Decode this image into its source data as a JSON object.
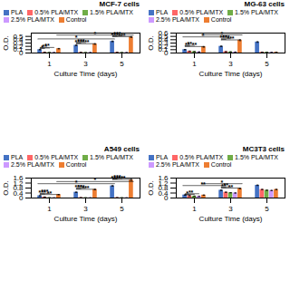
{
  "chart_data": [
    {
      "type": "bar",
      "title": "MCF-7 cells",
      "xlabel": "Culture Time (days)",
      "ylabel": "O.D.",
      "categories": [
        "1",
        "3",
        "5"
      ],
      "ylim": [
        0,
        0.6
      ],
      "yticks": [
        0,
        0.1,
        0.2,
        0.3,
        0.4,
        0.5
      ],
      "grid": false,
      "legend": "upper left",
      "series": [
        {
          "name": "PLA",
          "color": "#4472C4",
          "values": [
            0.1,
            0.23,
            0.35
          ],
          "errors": [
            0.006,
            0.009,
            0.01
          ]
        },
        {
          "name": "0.5% PLA/MTX",
          "color": "#FF6666",
          "values": [
            0.02,
            0.018,
            0.018
          ],
          "errors": [
            0.002,
            0.002,
            0.002
          ]
        },
        {
          "name": "1.5% PLA/MTX",
          "color": "#70AD47",
          "values": [
            0.014,
            0.012,
            0.012
          ],
          "errors": [
            0.001,
            0.001,
            0.001
          ]
        },
        {
          "name": "2.5% PLA/MTX",
          "color": "#CC99FF",
          "values": [
            0.012,
            0.012,
            0.012
          ],
          "errors": [
            0.001,
            0.001,
            0.001
          ]
        },
        {
          "name": "Control",
          "color": "#ED7D31",
          "values": [
            0.13,
            0.27,
            0.48
          ],
          "errors": [
            0.008,
            0.01,
            0.014
          ]
        }
      ],
      "annotations": [
        {
          "text": "*",
          "y": 0.135,
          "from": {
            "category": "1",
            "series": "PLA"
          },
          "to": {
            "category": "1",
            "series": "0.5% PLA/MTX"
          }
        },
        {
          "text": "**",
          "y": 0.1512,
          "from": {
            "category": "1",
            "series": "PLA"
          },
          "to": {
            "category": "1",
            "series": "1.5% PLA/MTX"
          }
        },
        {
          "text": "**",
          "y": 0.1674,
          "from": {
            "category": "1",
            "series": "PLA"
          },
          "to": {
            "category": "1",
            "series": "2.5% PLA/MTX"
          }
        },
        {
          "text": "***",
          "y": 0.28,
          "from": {
            "category": "3",
            "series": "PLA"
          },
          "to": {
            "category": "3",
            "series": "Control"
          }
        },
        {
          "text": "***",
          "y": 0.29728,
          "from": {
            "category": "3",
            "series": "PLA"
          },
          "to": {
            "category": "3",
            "series": "0.5% PLA/MTX"
          }
        },
        {
          "text": "***",
          "y": 0.31456,
          "from": {
            "category": "3",
            "series": "PLA"
          },
          "to": {
            "category": "3",
            "series": "1.5% PLA/MTX"
          }
        },
        {
          "text": "***",
          "y": 0.49,
          "from": {
            "category": "5",
            "series": "PLA"
          },
          "to": {
            "category": "5",
            "series": "Control"
          }
        },
        {
          "text": "***",
          "y": 0.50728,
          "from": {
            "category": "5",
            "series": "PLA"
          },
          "to": {
            "category": "5",
            "series": "0.5% PLA/MTX"
          }
        },
        {
          "text": "***",
          "y": 0.52456,
          "from": {
            "category": "5",
            "series": "PLA"
          },
          "to": {
            "category": "5",
            "series": "1.5% PLA/MTX"
          }
        },
        {
          "text": "*",
          "y": 0.425,
          "from": {
            "category": "1",
            "series": "PLA"
          },
          "to": {
            "category": "5",
            "series": "PLA"
          }
        },
        {
          "text": "*",
          "y": 0.54,
          "from": {
            "category": "1",
            "series": "Control"
          },
          "to": {
            "category": "5",
            "series": "Control"
          }
        }
      ]
    },
    {
      "type": "bar",
      "title": "MG-63 cells",
      "xlabel": "Culture Time (days)",
      "ylabel": "O.D.",
      "categories": [
        "1",
        "3",
        "5"
      ],
      "ylim": [
        0,
        0.6
      ],
      "yticks": [
        0,
        0.1,
        0.2,
        0.3,
        0.4,
        0.5,
        0.6
      ],
      "grid": false,
      "legend": "upper left",
      "series": [
        {
          "name": "PLA",
          "color": "#4472C4",
          "values": [
            0.1,
            0.2,
            0.33
          ],
          "errors": [
            0.007,
            0.009,
            0.01
          ]
        },
        {
          "name": "0.5% PLA/MTX",
          "color": "#FF6666",
          "values": [
            0.055,
            0.04,
            0.025
          ],
          "errors": [
            0.003,
            0.003,
            0.002
          ]
        },
        {
          "name": "1.5% PLA/MTX",
          "color": "#70AD47",
          "values": [
            0.042,
            0.033,
            0.02
          ],
          "errors": [
            0.002,
            0.002,
            0.001
          ]
        },
        {
          "name": "2.5% PLA/MTX",
          "color": "#CC99FF",
          "values": [
            0.032,
            0.028,
            0.018
          ],
          "errors": [
            0.002,
            0.002,
            0.001
          ]
        },
        {
          "name": "Control",
          "color": "#ED7D31",
          "values": [
            0.185,
            0.385,
            0.02
          ],
          "errors": [
            0.01,
            0.015,
            0.003
          ]
        }
      ],
      "annotations": [
        {
          "text": "**",
          "y": 0.195,
          "from": {
            "category": "1",
            "series": "PLA"
          },
          "to": {
            "category": "1",
            "series": "Control"
          }
        },
        {
          "text": "**",
          "y": 0.21228,
          "from": {
            "category": "1",
            "series": "PLA"
          },
          "to": {
            "category": "1",
            "series": "0.5% PLA/MTX"
          }
        },
        {
          "text": "**",
          "y": 0.22956,
          "from": {
            "category": "1",
            "series": "PLA"
          },
          "to": {
            "category": "1",
            "series": "1.5% PLA/MTX"
          }
        },
        {
          "text": "***",
          "y": 0.395,
          "from": {
            "category": "3",
            "series": "PLA"
          },
          "to": {
            "category": "3",
            "series": "Control"
          }
        },
        {
          "text": "***",
          "y": 0.41228,
          "from": {
            "category": "3",
            "series": "PLA"
          },
          "to": {
            "category": "3",
            "series": "0.5% PLA/MTX"
          }
        },
        {
          "text": "***",
          "y": 0.42956,
          "from": {
            "category": "3",
            "series": "PLA"
          },
          "to": {
            "category": "3",
            "series": "1.5% PLA/MTX"
          }
        },
        {
          "text": "*",
          "y": 0.485,
          "from": {
            "category": "1",
            "series": "PLA"
          },
          "to": {
            "category": "3",
            "series": "PLA"
          }
        },
        {
          "text": "*",
          "y": 0.545,
          "from": {
            "category": "1",
            "series": "Control"
          },
          "to": {
            "category": "3",
            "series": "Control"
          }
        }
      ]
    },
    {
      "type": "bar",
      "title": "A549 cells",
      "xlabel": "Culture Time (days)",
      "ylabel": "O.D.",
      "categories": [
        "1",
        "3",
        "5"
      ],
      "ylim": [
        0,
        1.6
      ],
      "yticks": [
        0,
        0.4,
        0.8,
        1.2,
        1.6
      ],
      "grid": false,
      "legend": "upper left",
      "series": [
        {
          "name": "PLA",
          "color": "#4472C4",
          "values": [
            0.175,
            0.46,
            0.97
          ],
          "errors": [
            0.01,
            0.015,
            0.02
          ]
        },
        {
          "name": "0.5% PLA/MTX",
          "color": "#FF6666",
          "values": [
            0.075,
            0.03,
            0.028
          ],
          "errors": [
            0.005,
            0.003,
            0.003
          ]
        },
        {
          "name": "1.5% PLA/MTX",
          "color": "#70AD47",
          "values": [
            0.02,
            0.018,
            0.018
          ],
          "errors": [
            0.002,
            0.002,
            0.002
          ]
        },
        {
          "name": "2.5% PLA/MTX",
          "color": "#CC99FF",
          "values": [
            0.015,
            0.015,
            0.015
          ],
          "errors": [
            0.001,
            0.001,
            0.001
          ]
        },
        {
          "name": "Control",
          "color": "#ED7D31",
          "values": [
            0.27,
            0.68,
            1.45
          ],
          "errors": [
            0.015,
            0.025,
            0.04
          ]
        }
      ],
      "annotations": [
        {
          "text": "**",
          "y": 0.28,
          "from": {
            "category": "1",
            "series": "PLA"
          },
          "to": {
            "category": "1",
            "series": "Control"
          }
        },
        {
          "text": "***",
          "y": 0.32608,
          "from": {
            "category": "1",
            "series": "PLA"
          },
          "to": {
            "category": "1",
            "series": "0.5% PLA/MTX"
          }
        },
        {
          "text": "***",
          "y": 0.37216,
          "from": {
            "category": "1",
            "series": "PLA"
          },
          "to": {
            "category": "1",
            "series": "1.5% PLA/MTX"
          }
        },
        {
          "text": "***",
          "y": 0.7,
          "from": {
            "category": "3",
            "series": "PLA"
          },
          "to": {
            "category": "3",
            "series": "Control"
          }
        },
        {
          "text": "***",
          "y": 0.74608,
          "from": {
            "category": "3",
            "series": "PLA"
          },
          "to": {
            "category": "3",
            "series": "0.5% PLA/MTX"
          }
        },
        {
          "text": "***",
          "y": 0.79216,
          "from": {
            "category": "3",
            "series": "PLA"
          },
          "to": {
            "category": "3",
            "series": "1.5% PLA/MTX"
          }
        },
        {
          "text": "***",
          "y": 1.48,
          "from": {
            "category": "5",
            "series": "PLA"
          },
          "to": {
            "category": "5",
            "series": "Control"
          }
        },
        {
          "text": "***",
          "y": 1.52608,
          "from": {
            "category": "5",
            "series": "PLA"
          },
          "to": {
            "category": "5",
            "series": "0.5% PLA/MTX"
          }
        },
        {
          "text": "***",
          "y": 1.57216,
          "from": {
            "category": "5",
            "series": "PLA"
          },
          "to": {
            "category": "5",
            "series": "1.5% PLA/MTX"
          }
        },
        {
          "text": "*",
          "y": 1.15,
          "from": {
            "category": "1",
            "series": "PLA"
          },
          "to": {
            "category": "5",
            "series": "PLA"
          }
        },
        {
          "text": "*",
          "y": 1.32,
          "from": {
            "category": "1",
            "series": "Control"
          },
          "to": {
            "category": "5",
            "series": "Control"
          }
        }
      ]
    },
    {
      "type": "bar",
      "title": "MC3T3 cells",
      "xlabel": "Culture Time (days)",
      "ylabel": "O.D.",
      "categories": [
        "1",
        "3",
        "5"
      ],
      "ylim": [
        0,
        1.6
      ],
      "yticks": [
        0,
        0.4,
        0.8,
        1.2,
        1.6
      ],
      "grid": false,
      "legend": "upper left",
      "series": [
        {
          "name": "PLA",
          "color": "#4472C4",
          "values": [
            0.24,
            0.62,
            1.02
          ],
          "errors": [
            0.01,
            0.018,
            0.022
          ]
        },
        {
          "name": "0.5% PLA/MTX",
          "color": "#FF6666",
          "values": [
            0.18,
            0.46,
            0.68
          ],
          "errors": [
            0.01,
            0.015,
            0.018
          ]
        },
        {
          "name": "1.5% PLA/MTX",
          "color": "#70AD47",
          "values": [
            0.15,
            0.42,
            0.62
          ],
          "errors": [
            0.008,
            0.013,
            0.016
          ]
        },
        {
          "name": "2.5% PLA/MTX",
          "color": "#CC99FF",
          "values": [
            0.14,
            0.4,
            0.6
          ],
          "errors": [
            0.008,
            0.013,
            0.015
          ]
        },
        {
          "name": "Control",
          "color": "#ED7D31",
          "values": [
            0.23,
            0.76,
            0.68
          ],
          "errors": [
            0.01,
            0.022,
            0.02
          ]
        }
      ],
      "annotations": [
        {
          "text": "*",
          "y": 0.25,
          "from": {
            "category": "1",
            "series": "PLA"
          },
          "to": {
            "category": "1",
            "series": "0.5% PLA/MTX"
          }
        },
        {
          "text": "*",
          "y": 0.29608,
          "from": {
            "category": "1",
            "series": "PLA"
          },
          "to": {
            "category": "1",
            "series": "1.5% PLA/MTX"
          }
        },
        {
          "text": "*",
          "y": 0.34216,
          "from": {
            "category": "1",
            "series": "PLA"
          },
          "to": {
            "category": "1",
            "series": "2.5% PLA/MTX"
          }
        },
        {
          "text": "**",
          "y": 0.8,
          "from": {
            "category": "3",
            "series": "PLA"
          },
          "to": {
            "category": "3",
            "series": "Control"
          }
        },
        {
          "text": "**",
          "y": 0.84608,
          "from": {
            "category": "3",
            "series": "PLA"
          },
          "to": {
            "category": "3",
            "series": "0.5% PLA/MTX"
          }
        },
        {
          "text": "**",
          "y": 0.89216,
          "from": {
            "category": "3",
            "series": "PLA"
          },
          "to": {
            "category": "3",
            "series": "1.5% PLA/MTX"
          }
        },
        {
          "text": "**",
          "y": 1.0,
          "from": {
            "category": "1",
            "series": "PLA"
          },
          "to": {
            "category": "3",
            "series": "PLA"
          }
        },
        {
          "text": "*",
          "y": 1.15,
          "from": {
            "category": "1",
            "series": "Control"
          },
          "to": {
            "category": "3",
            "series": "Control"
          }
        }
      ]
    }
  ]
}
